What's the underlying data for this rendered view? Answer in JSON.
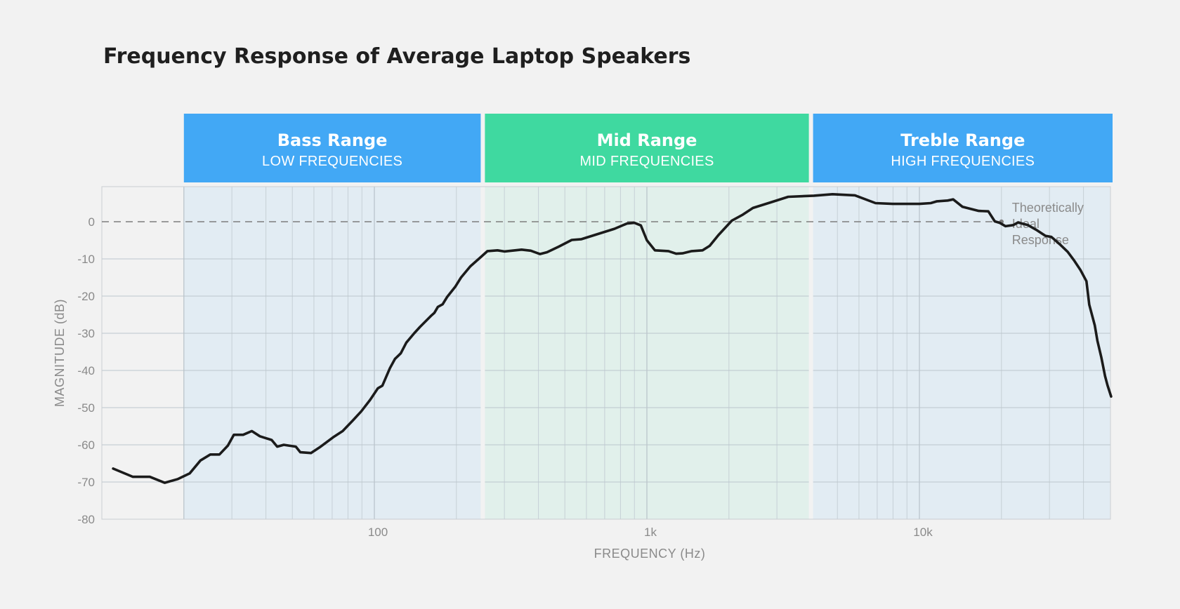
{
  "chart_data": {
    "type": "line",
    "title": "Frequency Response of Average Laptop Speakers",
    "xlabel": "FREQUENCY (Hz)",
    "ylabel": "MAGNITUDE (dB)",
    "x_scale": "log",
    "xlim": [
      10,
      50000
    ],
    "ylim": [
      -80,
      9
    ],
    "x_ticks": [
      {
        "value": 100,
        "label": "100"
      },
      {
        "value": 1000,
        "label": "1k"
      },
      {
        "value": 10000,
        "label": "10k"
      }
    ],
    "y_ticks": [
      {
        "value": 0,
        "label": "0"
      },
      {
        "value": -10,
        "label": "-10"
      },
      {
        "value": -20,
        "label": "-20"
      },
      {
        "value": -30,
        "label": "-30"
      },
      {
        "value": -40,
        "label": "-40"
      },
      {
        "value": -50,
        "label": "-50"
      },
      {
        "value": -60,
        "label": "-60"
      },
      {
        "value": -70,
        "label": "-70"
      },
      {
        "value": -80,
        "label": "-80"
      }
    ],
    "grid": true,
    "bands": [
      {
        "title": "Bass Range",
        "subtitle": "LOW FREQUENCIES",
        "from": 20,
        "to": 250,
        "color": "#42a8f5",
        "fill": "#e2ecf3"
      },
      {
        "title": "Mid Range",
        "subtitle": "MID FREQUENCIES",
        "from": 250,
        "to": 4000,
        "color": "#3fd9a0",
        "fill": "#e1f0eb"
      },
      {
        "title": "Treble Range",
        "subtitle": "HIGH FREQUENCIES",
        "from": 4000,
        "to": 50000,
        "color": "#42a8f5",
        "fill": "#e2ecf3"
      }
    ],
    "reference_line": {
      "y": 0,
      "label": [
        "Theoretically",
        "Ideal",
        "Response"
      ],
      "end_x": 20000
    },
    "series": [
      {
        "color": "#1b1b1b",
        "points": [
          [
            11,
            -66.4
          ],
          [
            13,
            -68.6
          ],
          [
            15,
            -68.6
          ],
          [
            17,
            -70.2
          ],
          [
            19,
            -69.2
          ],
          [
            21,
            -67.7
          ],
          [
            23,
            -64.2
          ],
          [
            25,
            -62.6
          ],
          [
            27,
            -62.6
          ],
          [
            29,
            -60.2
          ],
          [
            30.5,
            -57.3
          ],
          [
            33,
            -57.3
          ],
          [
            35.5,
            -56.3
          ],
          [
            38,
            -57.7
          ],
          [
            42,
            -58.7
          ],
          [
            44,
            -60.5
          ],
          [
            46.5,
            -60.0
          ],
          [
            51.5,
            -60.5
          ],
          [
            53.5,
            -62.0
          ],
          [
            58.5,
            -62.2
          ],
          [
            63.5,
            -60.5
          ],
          [
            70.5,
            -58.0
          ],
          [
            76.5,
            -56.3
          ],
          [
            83.5,
            -53.4
          ],
          [
            89.5,
            -51.0
          ],
          [
            96.5,
            -47.9
          ],
          [
            103,
            -44.8
          ],
          [
            107,
            -44.1
          ],
          [
            114,
            -39.4
          ],
          [
            119,
            -36.9
          ],
          [
            125,
            -35.4
          ],
          [
            131,
            -32.5
          ],
          [
            140,
            -30.0
          ],
          [
            147,
            -28.3
          ],
          [
            161,
            -25.4
          ],
          [
            166,
            -24.5
          ],
          [
            171,
            -22.9
          ],
          [
            178,
            -22.2
          ],
          [
            185,
            -20.2
          ],
          [
            198,
            -17.5
          ],
          [
            208,
            -15.0
          ],
          [
            225,
            -12.0
          ],
          [
            245,
            -9.6
          ],
          [
            260,
            -7.9
          ],
          [
            283,
            -7.7
          ],
          [
            300,
            -8.0
          ],
          [
            347,
            -7.5
          ],
          [
            375,
            -7.8
          ],
          [
            405,
            -8.7
          ],
          [
            430,
            -8.2
          ],
          [
            475,
            -6.7
          ],
          [
            530,
            -4.9
          ],
          [
            575,
            -4.7
          ],
          [
            655,
            -3.4
          ],
          [
            760,
            -1.9
          ],
          [
            845,
            -0.5
          ],
          [
            900,
            -0.3
          ],
          [
            950,
            -1.0
          ],
          [
            1000,
            -5.0
          ],
          [
            1070,
            -7.7
          ],
          [
            1200,
            -7.9
          ],
          [
            1280,
            -8.6
          ],
          [
            1350,
            -8.5
          ],
          [
            1460,
            -7.9
          ],
          [
            1600,
            -7.7
          ],
          [
            1700,
            -6.5
          ],
          [
            1830,
            -3.6
          ],
          [
            2050,
            0.3
          ],
          [
            2250,
            1.9
          ],
          [
            2450,
            3.7
          ],
          [
            2850,
            5.2
          ],
          [
            3300,
            6.7
          ],
          [
            4100,
            7.0
          ],
          [
            4800,
            7.4
          ],
          [
            5800,
            7.1
          ],
          [
            6900,
            5.0
          ],
          [
            8000,
            4.8
          ],
          [
            9000,
            4.8
          ],
          [
            10000,
            4.8
          ],
          [
            11000,
            5.0
          ],
          [
            11600,
            5.5
          ],
          [
            12700,
            5.7
          ],
          [
            13300,
            6.0
          ],
          [
            14400,
            4.0
          ],
          [
            16500,
            2.9
          ],
          [
            17900,
            2.8
          ],
          [
            18900,
            0.1
          ],
          [
            19700,
            -0.3
          ],
          [
            20700,
            -1.2
          ],
          [
            22100,
            -0.9
          ],
          [
            23000,
            -0.2
          ],
          [
            25000,
            -0.9
          ],
          [
            27000,
            -2.3
          ],
          [
            29000,
            -3.8
          ],
          [
            30500,
            -4.1
          ],
          [
            33000,
            -6.3
          ],
          [
            35000,
            -8.1
          ],
          [
            37000,
            -10.5
          ],
          [
            39000,
            -13.0
          ],
          [
            41000,
            -16.0
          ],
          [
            42000,
            -22.3
          ],
          [
            44000,
            -27.9
          ],
          [
            45000,
            -32.0
          ],
          [
            46500,
            -36.5
          ],
          [
            48000,
            -41.5
          ],
          [
            49000,
            -44.0
          ],
          [
            50500,
            -47.0
          ]
        ]
      }
    ]
  }
}
